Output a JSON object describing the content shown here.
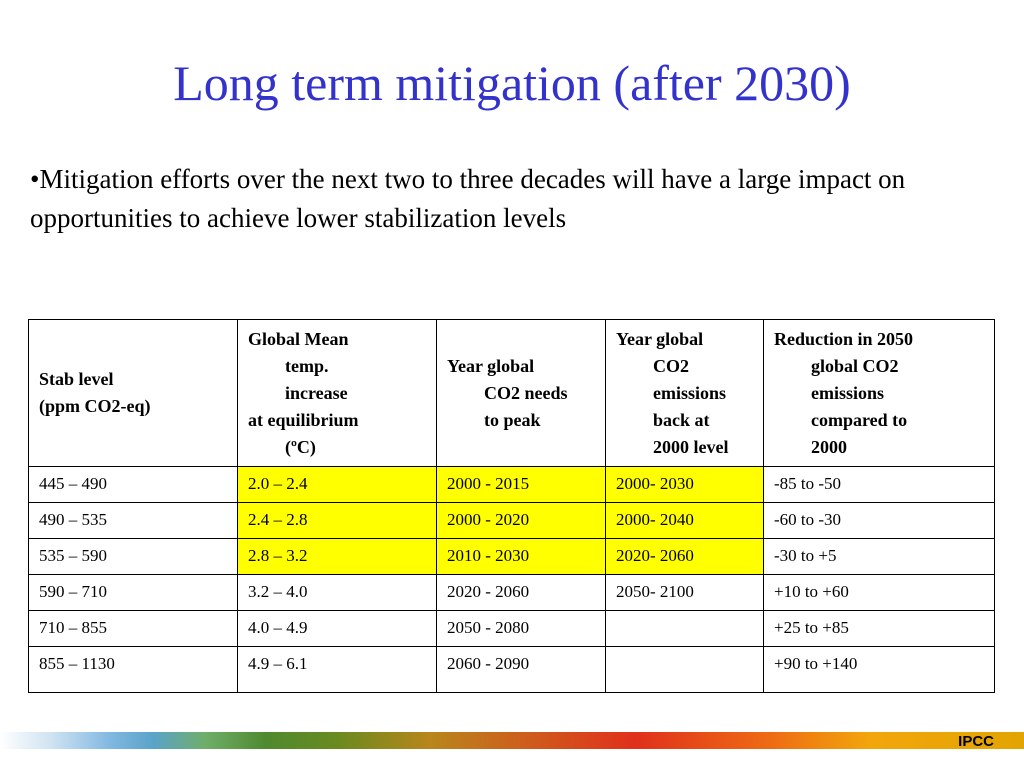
{
  "slide": {
    "title": "Long term mitigation (after 2030)",
    "bullet": "•Mitigation efforts over the next two to three decades will have a large impact on opportunities to achieve lower stabilization levels"
  },
  "table": {
    "headers": {
      "stab": [
        "Stab level",
        "(ppm CO2-eq)"
      ],
      "temp": [
        "Global Mean",
        "temp.",
        "increase",
        "at equilibrium",
        "(ºC)"
      ],
      "peak": [
        "Year global",
        "CO2 needs",
        "to peak"
      ],
      "back": [
        "Year global",
        "CO2",
        "emissions",
        "back at",
        "2000 level"
      ],
      "reduction": [
        "Reduction in 2050",
        "global CO2",
        "emissions",
        "compared to",
        "2000"
      ]
    },
    "rows": [
      [
        "445 – 490",
        "2.0 – 2.4",
        "2000 - 2015",
        "2000- 2030",
        "-85 to -50"
      ],
      [
        "490 – 535",
        "2.4 – 2.8",
        "2000 - 2020",
        "2000- 2040",
        "-60 to -30"
      ],
      [
        "535 – 590",
        "2.8 – 3.2",
        "2010 - 2030",
        "2020- 2060",
        "-30 to +5"
      ],
      [
        "590 – 710",
        "3.2 – 4.0",
        "2020 - 2060",
        "2050- 2100",
        "+10 to +60"
      ],
      [
        "710 – 855",
        "4.0 – 4.9",
        "2050 - 2080",
        "",
        "+25 to +85"
      ],
      [
        "855 – 1130",
        "4.9 – 6.1",
        "2060 - 2090",
        "",
        "+90 to +140"
      ]
    ],
    "highlight_color": "#ffff00"
  },
  "footer": {
    "label": "IPCC"
  }
}
